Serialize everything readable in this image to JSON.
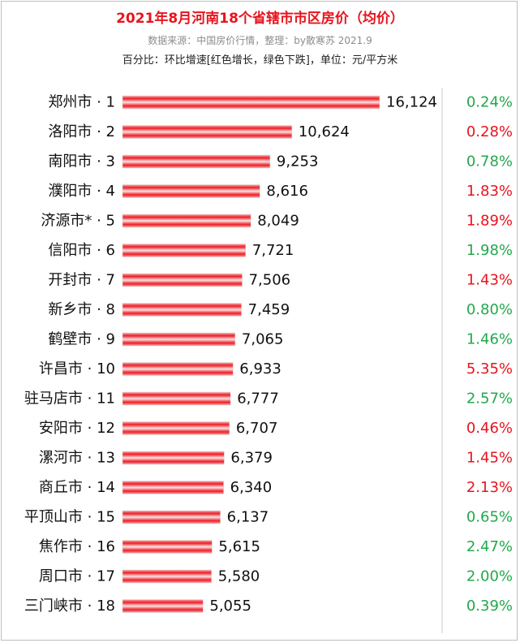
{
  "title": "2021年8月河南18个省辖市市区房价（均价）",
  "subtitle": "数据来源：中国房价行情，整理：by散寒苏 2021.9",
  "note": "百分比：环比增速[红色增长，绿色下跌]，单位：元/平方米",
  "colors": {
    "bar": "#ee1c25",
    "up": "#e8141e",
    "down": "#22a84c",
    "title": "#e8141e"
  },
  "chart_data": {
    "type": "bar",
    "orientation": "horizontal",
    "categories": [
      "郑州市 · 1",
      "洛阳市 · 2",
      "南阳市 · 3",
      "濮阳市 · 4",
      "济源市* · 5",
      "信阳市 · 6",
      "开封市 · 7",
      "新乡市 · 8",
      "鹤壁市 · 9",
      "许昌市 · 10",
      "驻马店市 · 11",
      "安阳市 · 12",
      "漯河市 · 13",
      "商丘市 · 14",
      "平顶山市 · 15",
      "焦作市 · 16",
      "周口市 · 17",
      "三门峡市 · 18"
    ],
    "values": [
      16124,
      10624,
      9253,
      8616,
      8049,
      7721,
      7506,
      7459,
      7065,
      6933,
      6777,
      6707,
      6379,
      6340,
      6137,
      5615,
      5580,
      5055
    ],
    "value_labels": [
      "16,124",
      "10,624",
      "9,253",
      "8,616",
      "8,049",
      "7,721",
      "7,506",
      "7,459",
      "7,065",
      "6,933",
      "6,777",
      "6,707",
      "6,379",
      "6,340",
      "6,137",
      "5,615",
      "5,580",
      "5,055"
    ],
    "pct_labels": [
      "0.24%",
      "0.28%",
      "0.78%",
      "1.83%",
      "1.89%",
      "1.98%",
      "1.43%",
      "0.80%",
      "1.46%",
      "5.35%",
      "2.57%",
      "0.46%",
      "1.45%",
      "2.13%",
      "0.65%",
      "2.47%",
      "2.00%",
      "0.39%"
    ],
    "pct_direction": [
      "down",
      "up",
      "down",
      "up",
      "up",
      "down",
      "up",
      "down",
      "down",
      "up",
      "down",
      "up",
      "up",
      "up",
      "down",
      "down",
      "down",
      "down"
    ],
    "xlim": [
      0,
      16124
    ],
    "grid": false
  }
}
